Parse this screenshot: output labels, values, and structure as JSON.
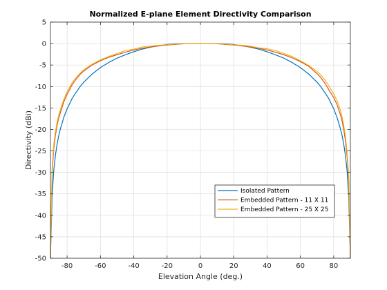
{
  "chart_data": {
    "type": "line",
    "title": "Normalized E-plane Element Directivity Comparison",
    "xlabel": "Elevation Angle (deg.)",
    "ylabel": "Directivity (dBi)",
    "xlim": [
      -90,
      90
    ],
    "ylim": [
      -50,
      5
    ],
    "xticks": [
      -80,
      -60,
      -40,
      -20,
      0,
      20,
      40,
      60,
      80
    ],
    "yticks": [
      5,
      0,
      -5,
      -10,
      -15,
      -20,
      -25,
      -30,
      -35,
      -40,
      -45,
      -50
    ],
    "grid": true,
    "legend_position": "bottom-right",
    "x": [
      -90,
      -89,
      -88,
      -87,
      -86,
      -85,
      -84,
      -82,
      -80,
      -77,
      -75,
      -72,
      -70,
      -65,
      -60,
      -55,
      -50,
      -45,
      -40,
      -35,
      -30,
      -25,
      -20,
      -15,
      -10,
      -5,
      0,
      5,
      10,
      15,
      20,
      25,
      30,
      35,
      40,
      45,
      50,
      55,
      60,
      65,
      70,
      72,
      75,
      77,
      80,
      82,
      84,
      85,
      86,
      87,
      88,
      89,
      90
    ],
    "series": [
      {
        "name": "Isolated Pattern",
        "color": "#0072BD",
        "values": [
          -50,
          -35.5,
          -29.5,
          -26,
          -23.4,
          -21.4,
          -19.8,
          -17.2,
          -15.2,
          -12.8,
          -11.6,
          -9.9,
          -9,
          -7.1,
          -5.6,
          -4.4,
          -3.4,
          -2.6,
          -1.9,
          -1.3,
          -0.85,
          -0.5,
          -0.22,
          -0.05,
          0,
          0,
          0,
          0,
          0,
          -0.05,
          -0.22,
          -0.5,
          -0.85,
          -1.3,
          -1.9,
          -2.6,
          -3.4,
          -4.4,
          -5.6,
          -7.1,
          -9,
          -9.9,
          -11.6,
          -12.8,
          -15.2,
          -17.2,
          -19.8,
          -21.4,
          -23.4,
          -26,
          -29.5,
          -35.5,
          -50
        ]
      },
      {
        "name": "Embedded Pattern - 11 X 11",
        "color": "#D95319",
        "values": [
          -50,
          -30,
          -24.5,
          -21.3,
          -19,
          -17.3,
          -16,
          -13.6,
          -11.8,
          -9.6,
          -8.5,
          -7.1,
          -6.4,
          -5,
          -4,
          -3.2,
          -2.6,
          -2,
          -1.5,
          -1.1,
          -0.8,
          -0.55,
          -0.35,
          -0.2,
          -0.05,
          0,
          0,
          0,
          -0.05,
          -0.2,
          -0.35,
          -0.55,
          -0.8,
          -1.1,
          -1.5,
          -2,
          -2.6,
          -3.3,
          -4.2,
          -5.3,
          -7,
          -7.8,
          -9.4,
          -10.7,
          -12.6,
          -14.2,
          -16.5,
          -18,
          -20,
          -22.5,
          -26,
          -32,
          -50
        ]
      },
      {
        "name": "Embedded Pattern - 25 X 25",
        "color": "#EDB120",
        "values": [
          -50,
          -29,
          -23.5,
          -20.5,
          -18.3,
          -16.6,
          -15.3,
          -13,
          -11.2,
          -9.1,
          -8.1,
          -6.8,
          -6.1,
          -4.8,
          -3.8,
          -3,
          -2.3,
          -1.6,
          -1.3,
          -0.8,
          -0.6,
          -0.4,
          -0.3,
          -0.1,
          -0.05,
          0,
          0,
          0,
          -0.05,
          -0.1,
          -0.3,
          -0.4,
          -0.6,
          -1,
          -1.2,
          -1.6,
          -2.3,
          -3,
          -4,
          -5.1,
          -6.5,
          -7.2,
          -8.6,
          -9.8,
          -11.7,
          -13.3,
          -15.5,
          -17,
          -19,
          -21.5,
          -25,
          -31,
          -50
        ]
      }
    ]
  }
}
